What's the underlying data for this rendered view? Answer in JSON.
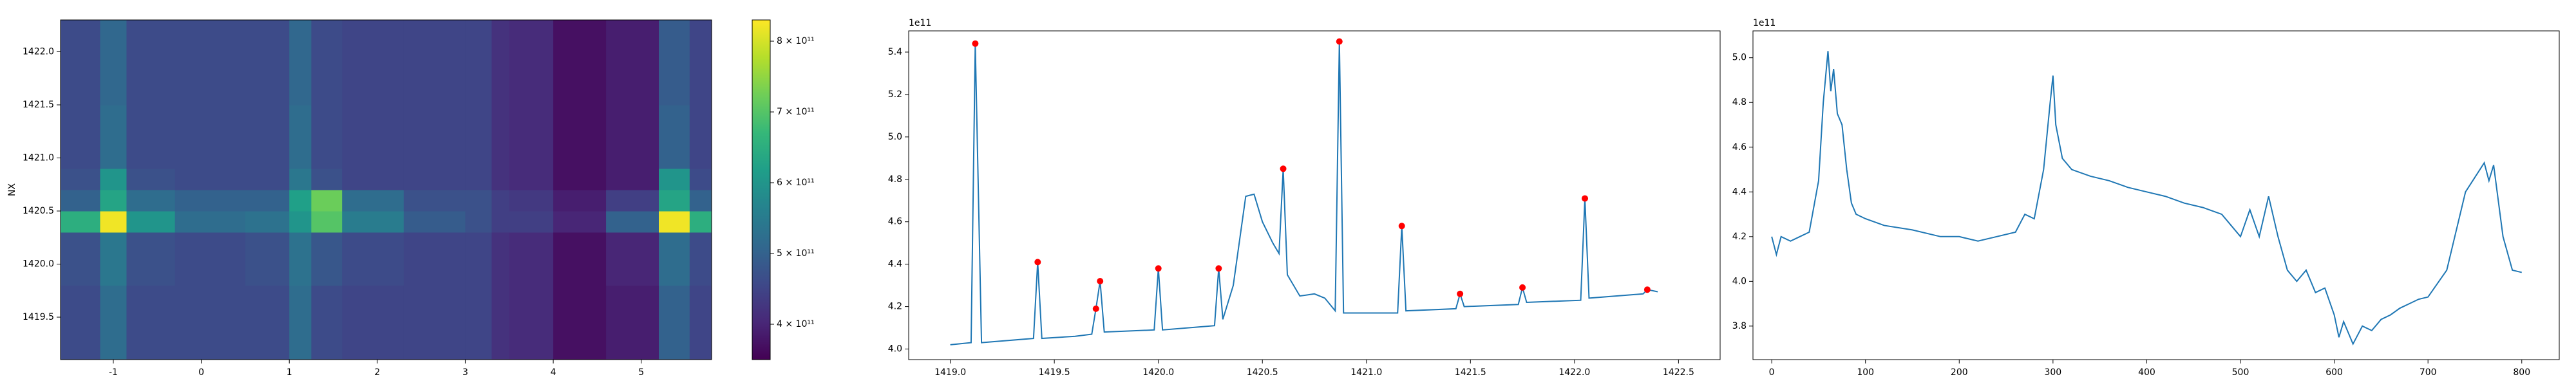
{
  "chart_data": [
    {
      "type": "heatmap",
      "ylabel": "NX",
      "colormap": "viridis",
      "x_edges": [
        -1.6,
        -1.15,
        -0.85,
        -0.3,
        0.5,
        1.0,
        1.25,
        1.6,
        2.3,
        3.0,
        3.3,
        3.5,
        4.0,
        4.6,
        5.2,
        5.55,
        5.8
      ],
      "y_edges": [
        1419.1,
        1419.8,
        1420.3,
        1420.5,
        1420.7,
        1420.9,
        1421.5,
        1422.3
      ],
      "z": [
        [
          460000000000.0,
          520000000000.0,
          460000000000.0,
          460000000000.0,
          460000000000.0,
          520000000000.0,
          460000000000.0,
          450000000000.0,
          450000000000.0,
          450000000000.0,
          420000000000.0,
          410000000000.0,
          370000000000.0,
          390000000000.0,
          500000000000.0,
          450000000000.0
        ],
        [
          470000000000.0,
          540000000000.0,
          470000000000.0,
          460000000000.0,
          470000000000.0,
          530000000000.0,
          480000000000.0,
          460000000000.0,
          450000000000.0,
          450000000000.0,
          420000000000.0,
          410000000000.0,
          370000000000.0,
          400000000000.0,
          520000000000.0,
          460000000000.0
        ],
        [
          650000000000.0,
          820000000000.0,
          600000000000.0,
          520000000000.0,
          530000000000.0,
          600000000000.0,
          700000000000.0,
          550000000000.0,
          490000000000.0,
          470000000000.0,
          440000000000.0,
          440000000000.0,
          400000000000.0,
          500000000000.0,
          820000000000.0,
          650000000000.0
        ],
        [
          500000000000.0,
          630000000000.0,
          520000000000.0,
          500000000000.0,
          500000000000.0,
          620000000000.0,
          720000000000.0,
          520000000000.0,
          470000000000.0,
          470000000000.0,
          440000000000.0,
          430000000000.0,
          390000000000.0,
          440000000000.0,
          630000000000.0,
          500000000000.0
        ],
        [
          470000000000.0,
          600000000000.0,
          470000000000.0,
          460000000000.0,
          460000000000.0,
          540000000000.0,
          470000000000.0,
          450000000000.0,
          450000000000.0,
          450000000000.0,
          420000000000.0,
          410000000000.0,
          370000000000.0,
          390000000000.0,
          600000000000.0,
          460000000000.0
        ],
        [
          460000000000.0,
          520000000000.0,
          460000000000.0,
          460000000000.0,
          460000000000.0,
          520000000000.0,
          460000000000.0,
          450000000000.0,
          450000000000.0,
          450000000000.0,
          420000000000.0,
          410000000000.0,
          370000000000.0,
          390000000000.0,
          500000000000.0,
          450000000000.0
        ],
        [
          460000000000.0,
          510000000000.0,
          460000000000.0,
          460000000000.0,
          460000000000.0,
          510000000000.0,
          460000000000.0,
          450000000000.0,
          450000000000.0,
          450000000000.0,
          420000000000.0,
          410000000000.0,
          370000000000.0,
          390000000000.0,
          490000000000.0,
          450000000000.0
        ]
      ],
      "xlim": [
        -1.6,
        5.8
      ],
      "ylim": [
        1419.1,
        1422.3
      ],
      "xticks": [
        -1,
        0,
        1,
        2,
        3,
        4,
        5
      ],
      "yticks": [
        1419.5,
        {
          "value": 1420,
          "label": "1420.0"
        },
        1420.5,
        {
          "value": 1421,
          "label": "1421.0"
        },
        1421.5,
        {
          "value": 1422,
          "label": "1422.0"
        }
      ],
      "clim": [
        350000000000.0,
        830000000000.0
      ],
      "cticks": [
        {
          "value": 400000000000.0,
          "label": "4 × 10¹¹"
        },
        {
          "value": 500000000000.0,
          "label": "5 × 10¹¹"
        },
        {
          "value": 600000000000.0,
          "label": "6 × 10¹¹"
        },
        {
          "value": 700000000000.0,
          "label": "7 × 10¹¹"
        },
        {
          "value": 800000000000.0,
          "label": "8 × 10¹¹"
        }
      ]
    },
    {
      "type": "line",
      "offset_label": "1e11",
      "series": [
        {
          "color": "#1f77b4",
          "x": [
            1419.0,
            1419.1,
            1419.12,
            1419.15,
            1419.4,
            1419.42,
            1419.44,
            1419.6,
            1419.68,
            1419.7,
            1419.72,
            1419.74,
            1419.98,
            1420.0,
            1420.02,
            1420.27,
            1420.29,
            1420.31,
            1420.36,
            1420.42,
            1420.46,
            1420.5,
            1420.55,
            1420.58,
            1420.6,
            1420.62,
            1420.68,
            1420.75,
            1420.8,
            1420.85,
            1420.87,
            1420.89,
            1421.15,
            1421.17,
            1421.19,
            1421.43,
            1421.45,
            1421.47,
            1421.73,
            1421.75,
            1421.77,
            1422.03,
            1422.05,
            1422.07,
            1422.33,
            1422.35,
            1422.4
          ],
          "values": [
            4.02,
            4.03,
            5.44,
            4.03,
            4.05,
            4.41,
            4.05,
            4.06,
            4.07,
            4.19,
            4.32,
            4.08,
            4.09,
            4.38,
            4.09,
            4.11,
            4.38,
            4.14,
            4.3,
            4.72,
            4.73,
            4.6,
            4.5,
            4.45,
            4.85,
            4.35,
            4.25,
            4.26,
            4.24,
            4.18,
            5.45,
            4.17,
            4.17,
            4.58,
            4.18,
            4.19,
            4.26,
            4.2,
            4.21,
            4.29,
            4.22,
            4.23,
            4.71,
            4.24,
            4.26,
            4.28,
            4.27
          ]
        }
      ],
      "peaks": {
        "color": "#ff0000",
        "x": [
          1419.12,
          1419.42,
          1419.7,
          1419.72,
          1420.0,
          1420.29,
          1420.6,
          1420.87,
          1421.17,
          1421.45,
          1421.75,
          1422.05,
          1422.35
        ],
        "values": [
          5.44,
          4.41,
          4.19,
          4.32,
          4.38,
          4.38,
          4.85,
          5.45,
          4.58,
          4.26,
          4.29,
          4.71,
          4.28
        ]
      },
      "xlim": [
        1418.8,
        1422.7
      ],
      "ylim": [
        3.95,
        5.5
      ],
      "xticks": [
        {
          "value": 1419,
          "label": "1419.0"
        },
        1419.5,
        {
          "value": 1420,
          "label": "1420.0"
        },
        1420.5,
        {
          "value": 1421,
          "label": "1421.0"
        },
        1421.5,
        {
          "value": 1422,
          "label": "1422.0"
        },
        1422.5
      ],
      "yticks": [
        {
          "value": 4,
          "label": "4.0"
        },
        4.2,
        4.4,
        4.6,
        4.8,
        {
          "value": 5,
          "label": "5.0"
        },
        5.2,
        5.4
      ]
    },
    {
      "type": "line",
      "offset_label": "1e11",
      "series": [
        {
          "color": "#1f77b4",
          "x": [
            0,
            5,
            10,
            20,
            30,
            40,
            50,
            55,
            60,
            63,
            66,
            70,
            75,
            80,
            85,
            90,
            100,
            120,
            150,
            180,
            200,
            220,
            240,
            260,
            270,
            280,
            290,
            297,
            300,
            303,
            310,
            320,
            340,
            360,
            380,
            400,
            420,
            440,
            460,
            480,
            490,
            500,
            510,
            520,
            530,
            540,
            550,
            560,
            570,
            580,
            590,
            600,
            605,
            610,
            620,
            630,
            640,
            650,
            660,
            670,
            680,
            690,
            700,
            720,
            740,
            760,
            765,
            770,
            780,
            790,
            800
          ],
          "values": [
            4.2,
            4.12,
            4.2,
            4.18,
            4.2,
            4.22,
            4.45,
            4.8,
            5.03,
            4.85,
            4.95,
            4.75,
            4.7,
            4.5,
            4.35,
            4.3,
            4.28,
            4.25,
            4.23,
            4.2,
            4.2,
            4.18,
            4.2,
            4.22,
            4.3,
            4.28,
            4.5,
            4.8,
            4.92,
            4.7,
            4.55,
            4.5,
            4.47,
            4.45,
            4.42,
            4.4,
            4.38,
            4.35,
            4.33,
            4.3,
            4.25,
            4.2,
            4.32,
            4.2,
            4.38,
            4.2,
            4.05,
            4.0,
            4.05,
            3.95,
            3.97,
            3.85,
            3.75,
            3.82,
            3.72,
            3.8,
            3.78,
            3.83,
            3.85,
            3.88,
            3.9,
            3.92,
            3.93,
            4.05,
            4.4,
            4.53,
            4.45,
            4.52,
            4.2,
            4.05,
            4.04
          ]
        }
      ],
      "xlim": [
        -20,
        840
      ],
      "ylim": [
        3.65,
        5.12
      ],
      "xticks": [
        0,
        100,
        200,
        300,
        400,
        500,
        600,
        700,
        800
      ],
      "yticks": [
        3.8,
        {
          "value": 4,
          "label": "4.0"
        },
        4.2,
        4.4,
        4.6,
        4.8,
        {
          "value": 5,
          "label": "5.0"
        }
      ]
    }
  ]
}
